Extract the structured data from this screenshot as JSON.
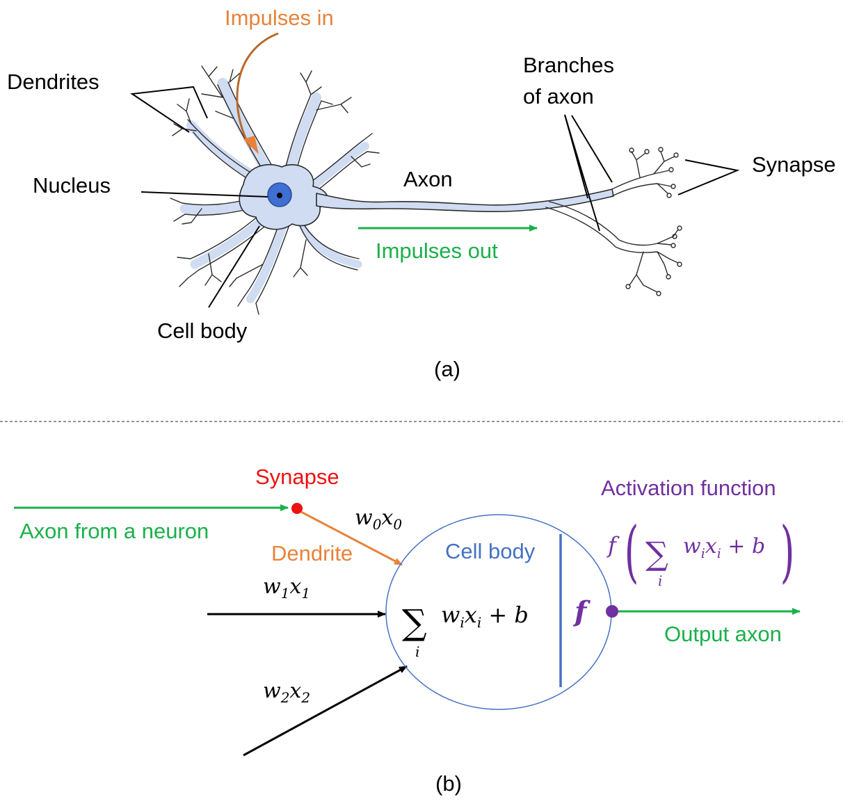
{
  "colors": {
    "orange": "#e8823a",
    "green": "#1ab04a",
    "blue": "#4472c4",
    "purple": "#7030a0",
    "red": "#ee1111",
    "black": "#000000",
    "cell": "#cfdcf2",
    "nucleus": "#3f6fd1"
  },
  "panel_a": {
    "impulses_in": "Impulses in",
    "dendrites": "Dendrites",
    "nucleus": "Nucleus",
    "axon": "Axon",
    "branches_line1": "Branches",
    "branches_line2": "of axon",
    "synapse": "Synapse",
    "impulses_out": "Impulses out",
    "cell_body": "Cell body",
    "caption": "(a)"
  },
  "panel_b": {
    "synapse": "Synapse",
    "axon_from_neuron": "Axon from a neuron",
    "dendrite": "Dendrite",
    "cell_body": "Cell body",
    "activation_function": "Activation function",
    "output_axon": "Output axon",
    "f_symbol": "f",
    "caption": "(b)",
    "sum_symbol": "∑",
    "sum_index": "i",
    "w0x0": {
      "w": "w",
      "ws": "0",
      "x": "x",
      "xs": "0"
    },
    "w1x1": {
      "w": "w",
      "ws": "1",
      "x": "x",
      "xs": "1"
    },
    "w2x2": {
      "w": "w",
      "ws": "2",
      "x": "x",
      "xs": "2"
    },
    "sum_terms": {
      "w": "w",
      "ws": "i",
      "x": "x",
      "xs": "i",
      "plus_b": " + b"
    },
    "act_terms": {
      "f": "f",
      "lparen": "(",
      "rparen": ")",
      "w": "w",
      "ws": "i",
      "x": "x",
      "xs": "i",
      "plus_b": " + b"
    }
  }
}
